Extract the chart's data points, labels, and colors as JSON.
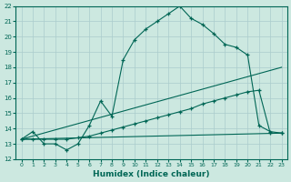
{
  "xlabel": "Humidex (Indice chaleur)",
  "xlim": [
    -0.5,
    23.5
  ],
  "ylim": [
    12,
    22
  ],
  "yticks": [
    12,
    13,
    14,
    15,
    16,
    17,
    18,
    19,
    20,
    21,
    22
  ],
  "xticks": [
    0,
    1,
    2,
    3,
    4,
    5,
    6,
    7,
    8,
    9,
    10,
    11,
    12,
    13,
    14,
    15,
    16,
    17,
    18,
    19,
    20,
    21,
    22,
    23
  ],
  "bg_color": "#cce8e0",
  "line_color": "#006655",
  "grid_color": "#aacccc",
  "lines": [
    {
      "x": [
        0,
        1,
        2,
        3,
        4,
        5,
        6,
        7,
        8,
        9,
        10,
        11,
        12,
        13,
        14,
        15,
        16,
        17,
        18,
        19,
        20,
        21,
        22,
        23
      ],
      "y": [
        13.3,
        13.8,
        13.0,
        13.0,
        12.6,
        13.0,
        14.2,
        15.8,
        14.8,
        18.5,
        19.8,
        20.5,
        21.0,
        21.5,
        22.0,
        21.2,
        20.8,
        20.2,
        19.5,
        19.3,
        18.8,
        14.2,
        13.8,
        13.7
      ],
      "marker": true
    },
    {
      "x": [
        0,
        1,
        2,
        3,
        4,
        5,
        6,
        7,
        8,
        9,
        10,
        11,
        12,
        13,
        14,
        15,
        16,
        17,
        18,
        19,
        20,
        21,
        22,
        23
      ],
      "y": [
        13.3,
        13.3,
        13.3,
        13.3,
        13.3,
        13.4,
        13.5,
        13.7,
        13.9,
        14.1,
        14.3,
        14.5,
        14.7,
        14.9,
        15.1,
        15.3,
        15.6,
        15.8,
        16.0,
        16.2,
        16.4,
        16.5,
        13.7,
        13.7
      ],
      "marker": true
    },
    {
      "x": [
        0,
        23
      ],
      "y": [
        13.3,
        18.0
      ],
      "marker": false
    },
    {
      "x": [
        0,
        23
      ],
      "y": [
        13.3,
        13.7
      ],
      "marker": false
    }
  ]
}
